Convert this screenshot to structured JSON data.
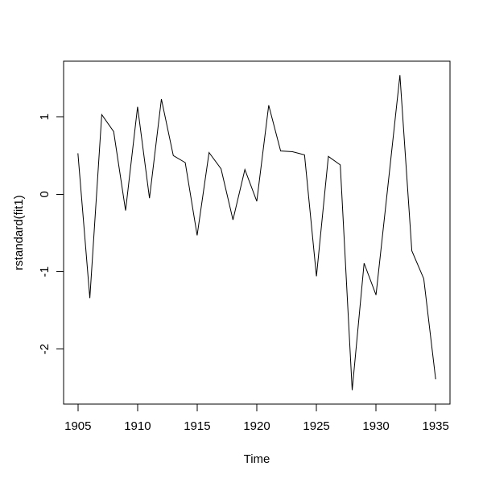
{
  "figure": {
    "background": "#ffffff",
    "line_color": "#000000",
    "axis_color": "#000000",
    "text_color": "#000000"
  },
  "chart_data": {
    "type": "line",
    "title": "",
    "xlabel": "Time",
    "ylabel": "rstandard(fit1)",
    "x": [
      1905,
      1906,
      1907,
      1908,
      1909,
      1910,
      1911,
      1912,
      1913,
      1914,
      1915,
      1916,
      1917,
      1918,
      1919,
      1920,
      1921,
      1922,
      1923,
      1924,
      1925,
      1926,
      1927,
      1928,
      1929,
      1930,
      1931,
      1932,
      1933,
      1934,
      1935
    ],
    "y": [
      0.53,
      -1.34,
      1.03,
      0.81,
      -0.21,
      1.13,
      -0.05,
      1.23,
      0.5,
      0.41,
      -0.53,
      0.54,
      0.33,
      -0.33,
      0.32,
      -0.09,
      1.15,
      0.56,
      0.55,
      0.51,
      -1.06,
      0.49,
      0.38,
      -2.53,
      -0.89,
      -1.3,
      0.12,
      1.54,
      -0.73,
      -1.09,
      -2.39
    ],
    "x_ticks": [
      1905,
      1910,
      1915,
      1920,
      1925,
      1930,
      1935
    ],
    "y_ticks": [
      -2,
      -1,
      0,
      1
    ],
    "xlim": [
      1903.8,
      1936.2
    ],
    "ylim": [
      -2.71,
      1.72
    ],
    "grid": false,
    "legend": null
  }
}
